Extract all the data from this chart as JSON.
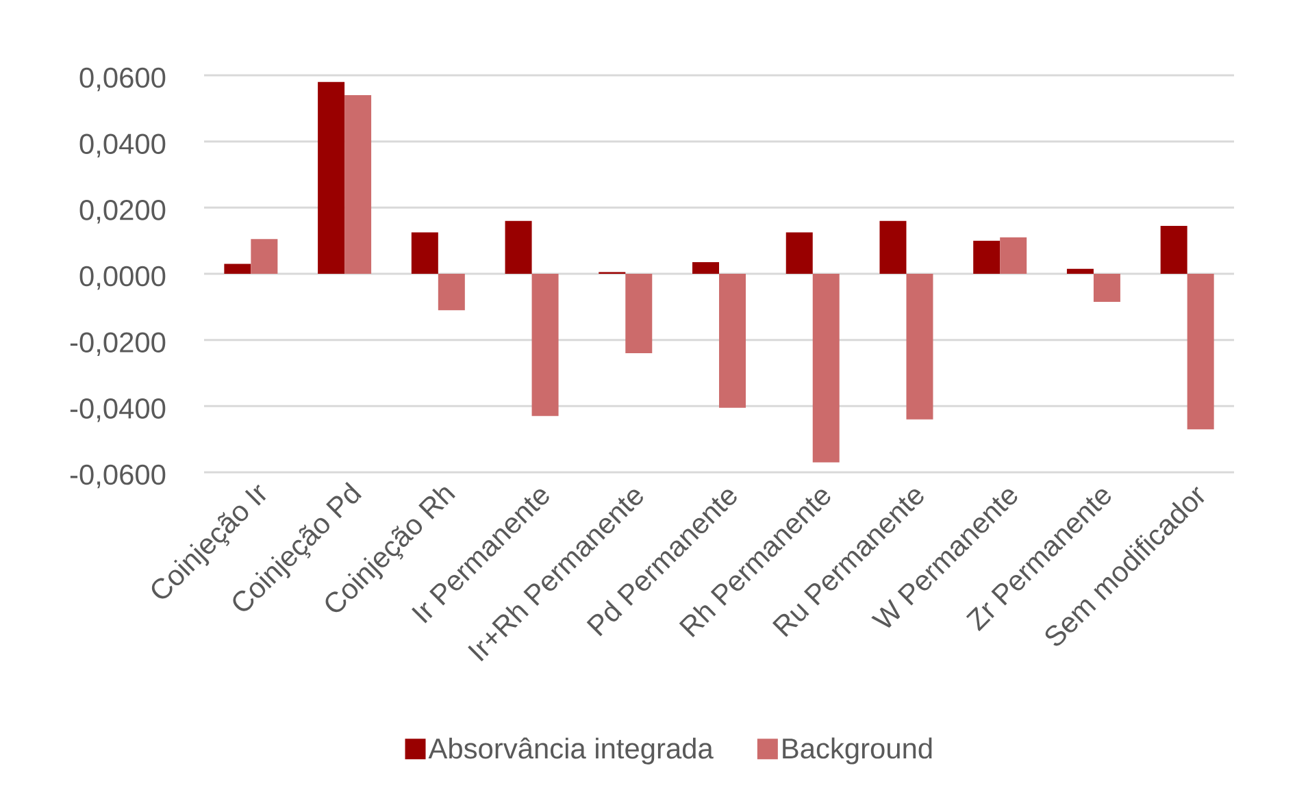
{
  "chart_data": {
    "type": "bar",
    "categories": [
      "Coinjeção Ir",
      "Coinjeção Pd",
      "Coinjeção Rh",
      "Ir Permanente",
      "Ir+Rh Permanente",
      "Pd Permanente",
      "Rh Permanente",
      "Ru Permanente",
      "W Permanente",
      "Zr Permanente",
      "Sem modificador"
    ],
    "series": [
      {
        "name": "Absorvância integrada",
        "color": "#990000",
        "values": [
          0.003,
          0.058,
          0.0125,
          0.016,
          0.0005,
          0.0035,
          0.0125,
          0.016,
          0.01,
          0.0015,
          0.0145
        ]
      },
      {
        "name": "Background",
        "color": "#cc6b6b",
        "values": [
          0.0105,
          0.054,
          -0.011,
          -0.043,
          -0.024,
          -0.0405,
          -0.057,
          -0.044,
          0.011,
          -0.0085,
          -0.047
        ]
      }
    ],
    "ylim": [
      -0.06,
      0.06
    ],
    "yticks": [
      {
        "value": -0.06,
        "label": "-0,0600"
      },
      {
        "value": -0.04,
        "label": "-0,0400"
      },
      {
        "value": -0.02,
        "label": "-0,0200"
      },
      {
        "value": 0,
        "label": "0,0000"
      },
      {
        "value": 0.02,
        "label": "0,0200"
      },
      {
        "value": 0.04,
        "label": "0,0400"
      },
      {
        "value": 0.06,
        "label": "0,0600"
      }
    ],
    "grid": "y",
    "legend": "bottom"
  }
}
